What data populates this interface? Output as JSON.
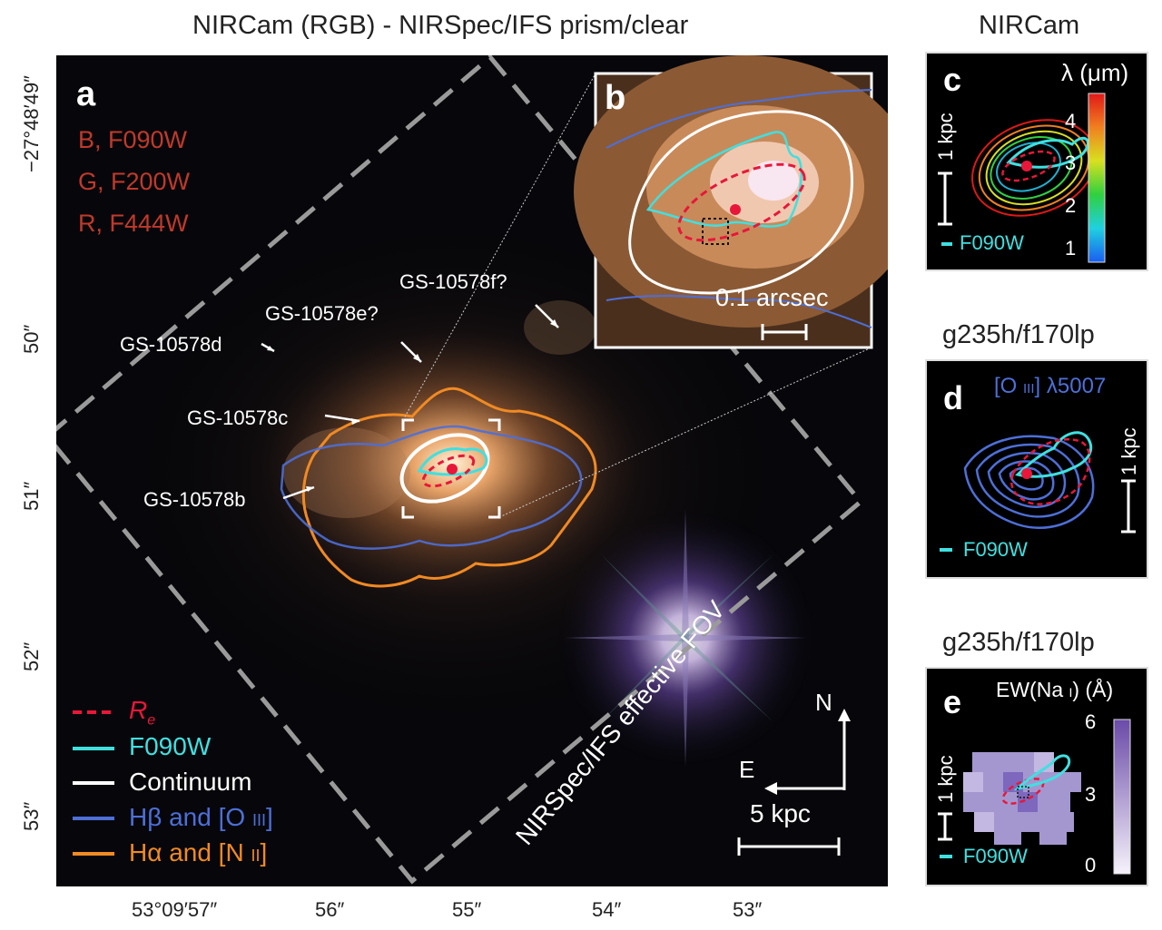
{
  "titles": {
    "main": "NIRCam (RGB) - NIRSpec/IFS prism/clear",
    "c": "NIRCam",
    "d": "g235h/f170lp",
    "e": "g235h/f170lp"
  },
  "axes": {
    "dec_ticks": [
      "−27°48′49″",
      "50″",
      "51″",
      "52″",
      "53″"
    ],
    "ra_ticks": [
      "53°09′57″",
      "56″",
      "55″",
      "54″",
      "53″"
    ]
  },
  "panel_a": {
    "letter": "a",
    "filters": [
      {
        "text": "B, F090W",
        "color": "#c0392b"
      },
      {
        "text": "G, F200W",
        "color": "#c0392b"
      },
      {
        "text": "R, F444W",
        "color": "#c0392b"
      }
    ],
    "sources": [
      "GS-10578f?",
      "GS-10578e?",
      "GS-10578d",
      "GS-10578c",
      "GS-10578b"
    ],
    "fov_label": "NIRSpec/IFS effective FOV",
    "legend": [
      {
        "label": "R",
        "sub": "e",
        "color": "#e8173a",
        "dashed": true
      },
      {
        "label": "F090W",
        "color": "#3fe0e0",
        "dashed": false
      },
      {
        "label": "Continuum",
        "color": "#ffffff",
        "dashed": false
      },
      {
        "label": "Hβ and [O",
        "roman": "III",
        "close": "]",
        "color": "#4d6fd8",
        "dashed": false
      },
      {
        "label": "Hα and [N",
        "roman": "II",
        "close": "]",
        "color": "#f08a24",
        "dashed": false
      }
    ],
    "compass": {
      "north": "N",
      "east": "E"
    },
    "scalebar": "5 kpc"
  },
  "panel_b": {
    "letter": "b",
    "scale": "0.1 arcsec"
  },
  "panel_c": {
    "letter": "c",
    "cbar_title": "λ (μm)",
    "cbar_ticks": [
      "4",
      "3",
      "2",
      "1"
    ],
    "scale": "1 kpc",
    "filter": "F090W"
  },
  "panel_d": {
    "letter": "d",
    "line": "[O",
    "line_roman": "III",
    "line_wave": "] λ5007",
    "scale": "1 kpc",
    "filter": "F090W"
  },
  "panel_e": {
    "letter": "e",
    "cbar_title": "EW(Na",
    "cbar_roman": "I",
    "cbar_unit": ")  (Å)",
    "cbar_ticks": [
      "6",
      "3",
      "0"
    ],
    "scale": "1 kpc",
    "filter": "F090W"
  }
}
